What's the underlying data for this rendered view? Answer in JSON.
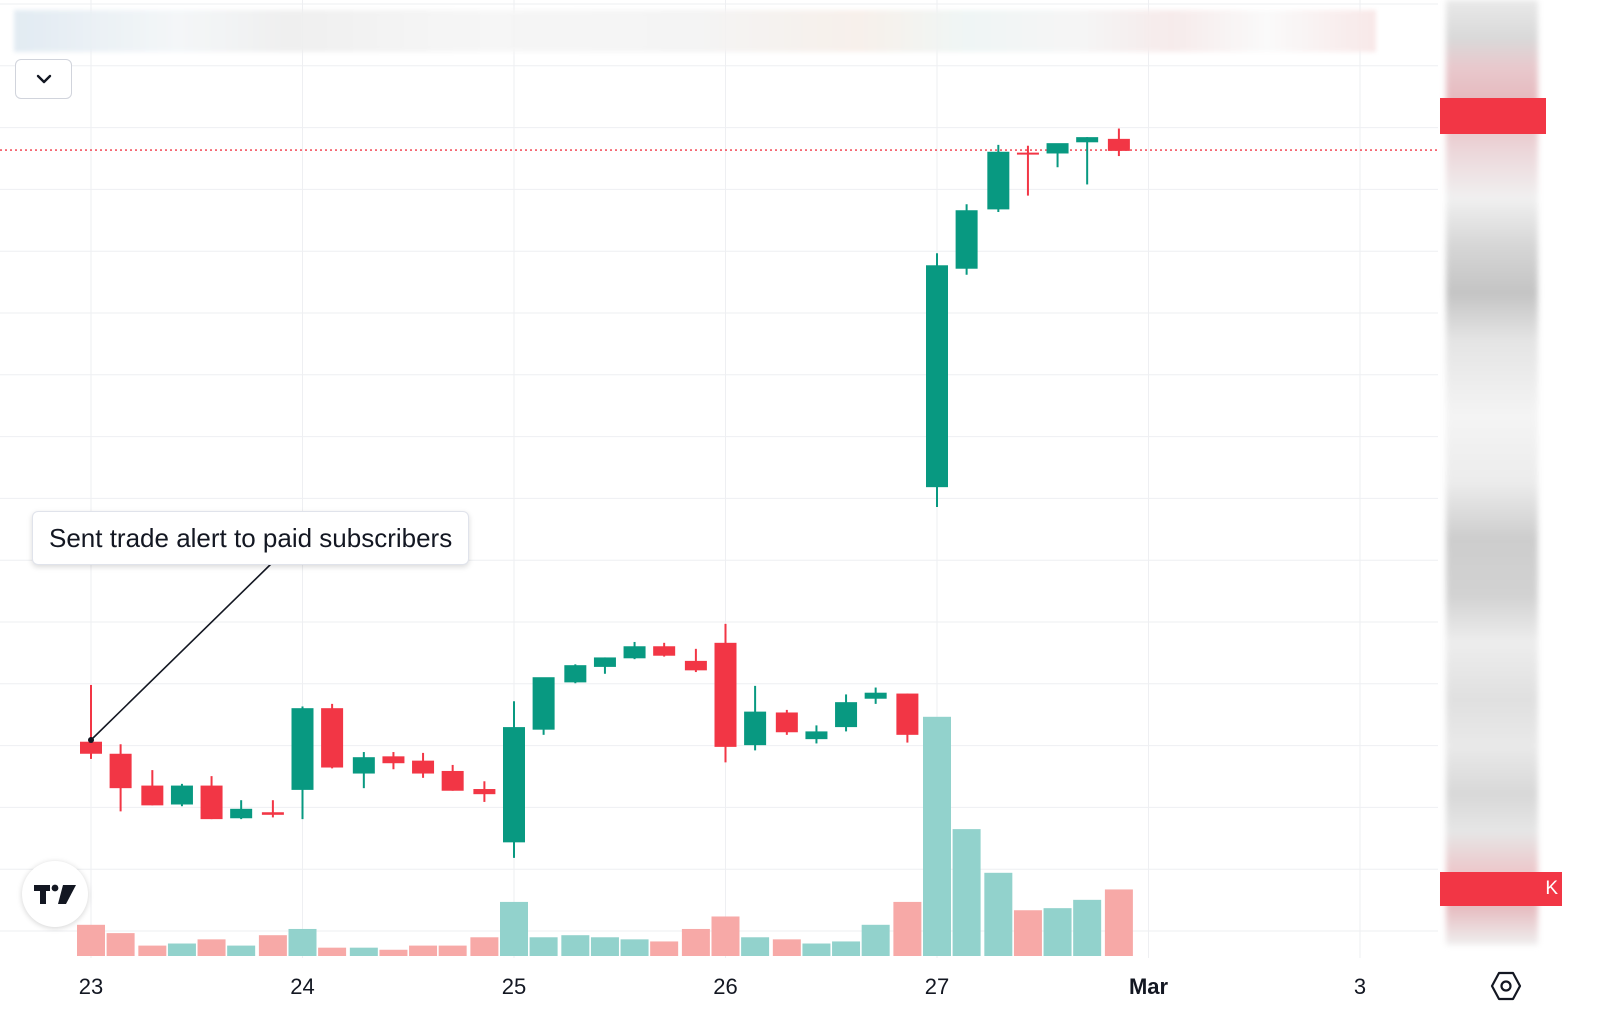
{
  "annotation": {
    "text": "Sent trade alert to paid subscribers"
  },
  "colors": {
    "up": "#089981",
    "down": "#f23645",
    "volume_up": "#92d2cc",
    "volume_down": "#f7a9a7",
    "grid": "#eeeff2",
    "price_line": "#f23645"
  },
  "icons": {
    "menu": "chevron-down-icon",
    "logo": "tradingview-logo",
    "settings": "gear-icon"
  },
  "price_tags": {
    "bottom_suffix": "K"
  },
  "chart_data": {
    "type": "candlestick",
    "grid": true,
    "x_ticks": [
      "23",
      "24",
      "25",
      "26",
      "27",
      "Mar",
      "3"
    ],
    "x_tick_days": [
      23,
      24,
      25,
      26,
      27,
      28,
      29
    ],
    "y_range": [
      0,
      100
    ],
    "last_price": 93.6,
    "annotation_at": {
      "day": 23.0,
      "price": 25.0
    },
    "candles": [
      {
        "day": 22.0,
        "o": 19.9,
        "h": 27.2,
        "l": 19.9,
        "c": 25.3
      },
      {
        "day": 22.14,
        "o": 25.7,
        "h": 27.1,
        "l": 24.8,
        "c": 26.4
      },
      {
        "day": 22.29,
        "o": 26.4,
        "h": 27.6,
        "l": 26.1,
        "c": 27.0
      },
      {
        "day": 23.0,
        "o": 24.8,
        "h": 31.4,
        "l": 22.8,
        "c": 23.4
      },
      {
        "day": 23.14,
        "o": 23.4,
        "h": 24.5,
        "l": 16.7,
        "c": 19.4
      },
      {
        "day": 23.29,
        "o": 19.7,
        "h": 21.5,
        "l": 17.4,
        "c": 17.4
      },
      {
        "day": 23.43,
        "o": 17.5,
        "h": 19.9,
        "l": 17.3,
        "c": 19.7
      },
      {
        "day": 23.57,
        "o": 19.7,
        "h": 20.8,
        "l": 15.8,
        "c": 15.8
      },
      {
        "day": 23.71,
        "o": 15.9,
        "h": 18.0,
        "l": 15.8,
        "c": 17.0
      },
      {
        "day": 23.86,
        "o": 16.6,
        "h": 18.0,
        "l": 16.0,
        "c": 16.3
      },
      {
        "day": 24.0,
        "o": 19.2,
        "h": 28.9,
        "l": 15.8,
        "c": 28.7
      },
      {
        "day": 24.14,
        "o": 28.7,
        "h": 29.2,
        "l": 21.7,
        "c": 21.8
      },
      {
        "day": 24.29,
        "o": 21.1,
        "h": 23.6,
        "l": 19.4,
        "c": 23.0
      },
      {
        "day": 24.43,
        "o": 23.1,
        "h": 23.6,
        "l": 21.6,
        "c": 22.3
      },
      {
        "day": 24.57,
        "o": 22.6,
        "h": 23.5,
        "l": 20.6,
        "c": 21.1
      },
      {
        "day": 24.71,
        "o": 21.4,
        "h": 22.1,
        "l": 19.1,
        "c": 19.1
      },
      {
        "day": 24.86,
        "o": 19.3,
        "h": 20.2,
        "l": 17.8,
        "c": 18.7
      },
      {
        "day": 25.0,
        "o": 13.1,
        "h": 29.5,
        "l": 11.3,
        "c": 26.5
      },
      {
        "day": 25.14,
        "o": 26.2,
        "h": 32.2,
        "l": 25.6,
        "c": 32.3
      },
      {
        "day": 25.29,
        "o": 31.7,
        "h": 33.8,
        "l": 31.6,
        "c": 33.7
      },
      {
        "day": 25.43,
        "o": 33.5,
        "h": 34.6,
        "l": 32.7,
        "c": 34.6
      },
      {
        "day": 25.57,
        "o": 34.5,
        "h": 36.4,
        "l": 34.4,
        "c": 35.9
      },
      {
        "day": 25.71,
        "o": 35.9,
        "h": 36.3,
        "l": 34.7,
        "c": 34.8
      },
      {
        "day": 25.86,
        "o": 34.2,
        "h": 35.6,
        "l": 32.9,
        "c": 33.1
      },
      {
        "day": 26.0,
        "o": 36.3,
        "h": 38.5,
        "l": 22.4,
        "c": 24.2
      },
      {
        "day": 26.14,
        "o": 24.4,
        "h": 31.3,
        "l": 23.8,
        "c": 28.3
      },
      {
        "day": 26.29,
        "o": 28.2,
        "h": 28.5,
        "l": 25.6,
        "c": 25.9
      },
      {
        "day": 26.43,
        "o": 25.1,
        "h": 26.7,
        "l": 24.6,
        "c": 26.0
      },
      {
        "day": 26.57,
        "o": 26.5,
        "h": 30.3,
        "l": 26.0,
        "c": 29.4
      },
      {
        "day": 26.71,
        "o": 29.8,
        "h": 31.1,
        "l": 29.2,
        "c": 30.5
      },
      {
        "day": 26.86,
        "o": 30.4,
        "h": 30.4,
        "l": 24.7,
        "c": 25.6
      },
      {
        "day": 27.0,
        "o": 54.4,
        "h": 81.6,
        "l": 52.1,
        "c": 80.2
      },
      {
        "day": 27.14,
        "o": 79.8,
        "h": 87.3,
        "l": 79.1,
        "c": 86.6
      },
      {
        "day": 27.29,
        "o": 86.7,
        "h": 94.2,
        "l": 86.4,
        "c": 93.4
      },
      {
        "day": 27.43,
        "o": 93.3,
        "h": 94.1,
        "l": 88.3,
        "c": 93.2
      },
      {
        "day": 27.57,
        "o": 93.2,
        "h": 94.2,
        "l": 91.6,
        "c": 94.4
      },
      {
        "day": 27.71,
        "o": 94.5,
        "h": 95.1,
        "l": 89.6,
        "c": 95.1
      },
      {
        "day": 27.86,
        "o": 94.9,
        "h": 96.1,
        "l": 92.9,
        "c": 93.5
      }
    ],
    "volume": [
      {
        "day": 22.0,
        "v": 14,
        "dir": "up"
      },
      {
        "day": 22.14,
        "v": 18,
        "dir": "up"
      },
      {
        "day": 22.29,
        "v": 36,
        "dir": "up"
      },
      {
        "day": 23.0,
        "v": 30,
        "dir": "down"
      },
      {
        "day": 23.14,
        "v": 22,
        "dir": "down"
      },
      {
        "day": 23.29,
        "v": 10,
        "dir": "down"
      },
      {
        "day": 23.43,
        "v": 12,
        "dir": "up"
      },
      {
        "day": 23.57,
        "v": 16,
        "dir": "down"
      },
      {
        "day": 23.71,
        "v": 10,
        "dir": "up"
      },
      {
        "day": 23.86,
        "v": 20,
        "dir": "down"
      },
      {
        "day": 24.0,
        "v": 26,
        "dir": "up"
      },
      {
        "day": 24.14,
        "v": 8,
        "dir": "down"
      },
      {
        "day": 24.29,
        "v": 8,
        "dir": "up"
      },
      {
        "day": 24.43,
        "v": 6,
        "dir": "down"
      },
      {
        "day": 24.57,
        "v": 10,
        "dir": "down"
      },
      {
        "day": 24.71,
        "v": 10,
        "dir": "down"
      },
      {
        "day": 24.86,
        "v": 18,
        "dir": "down"
      },
      {
        "day": 25.0,
        "v": 52,
        "dir": "up"
      },
      {
        "day": 25.14,
        "v": 18,
        "dir": "up"
      },
      {
        "day": 25.29,
        "v": 20,
        "dir": "up"
      },
      {
        "day": 25.43,
        "v": 18,
        "dir": "up"
      },
      {
        "day": 25.57,
        "v": 16,
        "dir": "up"
      },
      {
        "day": 25.71,
        "v": 14,
        "dir": "down"
      },
      {
        "day": 25.86,
        "v": 26,
        "dir": "down"
      },
      {
        "day": 26.0,
        "v": 38,
        "dir": "down"
      },
      {
        "day": 26.14,
        "v": 18,
        "dir": "up"
      },
      {
        "day": 26.29,
        "v": 16,
        "dir": "down"
      },
      {
        "day": 26.43,
        "v": 12,
        "dir": "up"
      },
      {
        "day": 26.57,
        "v": 14,
        "dir": "up"
      },
      {
        "day": 26.71,
        "v": 30,
        "dir": "up"
      },
      {
        "day": 26.86,
        "v": 52,
        "dir": "down"
      },
      {
        "day": 27.0,
        "v": 230,
        "dir": "up"
      },
      {
        "day": 27.14,
        "v": 122,
        "dir": "up"
      },
      {
        "day": 27.29,
        "v": 80,
        "dir": "up"
      },
      {
        "day": 27.43,
        "v": 44,
        "dir": "down"
      },
      {
        "day": 27.57,
        "v": 46,
        "dir": "up"
      },
      {
        "day": 27.71,
        "v": 54,
        "dir": "up"
      },
      {
        "day": 27.86,
        "v": 64,
        "dir": "down"
      }
    ]
  }
}
